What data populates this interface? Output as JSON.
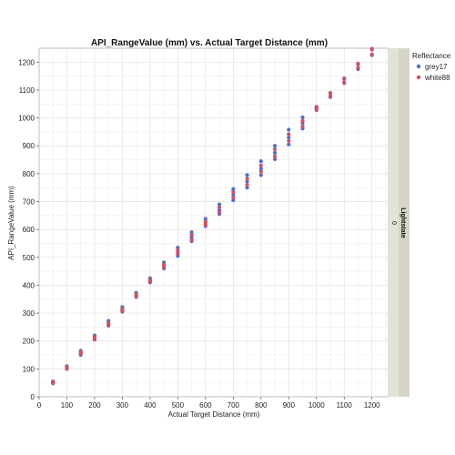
{
  "chart_data": {
    "type": "scatter",
    "title": "API_RangeValue (mm) vs. Actual Target Distance (mm)",
    "xlabel": "Actual Target Distance (mm)",
    "ylabel": "API_RangeValue (mm)",
    "xlim": [
      0,
      1260
    ],
    "ylim": [
      0,
      1250
    ],
    "xticks": [
      "0",
      "100",
      "200",
      "300",
      "400",
      "500",
      "600",
      "700",
      "800",
      "900",
      "1000",
      "1100",
      "1200"
    ],
    "yticks": [
      "0",
      "100",
      "200",
      "300",
      "400",
      "500",
      "600",
      "700",
      "800",
      "900",
      "1000",
      "1100",
      "1200"
    ],
    "grid": true,
    "legend": {
      "title": "Reflectance",
      "placement": "right"
    },
    "strip": {
      "title": "Lightstate",
      "value": "0"
    },
    "series": [
      {
        "name": "grey17",
        "color": "#4a6fd4",
        "points": [
          [
            50,
            48
          ],
          [
            50,
            52
          ],
          [
            50,
            55
          ],
          [
            100,
            100
          ],
          [
            100,
            105
          ],
          [
            100,
            110
          ],
          [
            150,
            150
          ],
          [
            150,
            158
          ],
          [
            150,
            165
          ],
          [
            200,
            205
          ],
          [
            200,
            212
          ],
          [
            200,
            220
          ],
          [
            250,
            255
          ],
          [
            250,
            263
          ],
          [
            250,
            272
          ],
          [
            300,
            305
          ],
          [
            300,
            313
          ],
          [
            300,
            322
          ],
          [
            350,
            358
          ],
          [
            350,
            365
          ],
          [
            350,
            373
          ],
          [
            400,
            410
          ],
          [
            400,
            418
          ],
          [
            400,
            425
          ],
          [
            450,
            460
          ],
          [
            450,
            470
          ],
          [
            450,
            482
          ],
          [
            500,
            505
          ],
          [
            500,
            518
          ],
          [
            500,
            535
          ],
          [
            550,
            558
          ],
          [
            550,
            572
          ],
          [
            550,
            590
          ],
          [
            600,
            612
          ],
          [
            600,
            625
          ],
          [
            600,
            638
          ],
          [
            650,
            655
          ],
          [
            650,
            670
          ],
          [
            650,
            690
          ],
          [
            700,
            705
          ],
          [
            700,
            725
          ],
          [
            700,
            745
          ],
          [
            750,
            750
          ],
          [
            750,
            772
          ],
          [
            750,
            795
          ],
          [
            800,
            795
          ],
          [
            800,
            818
          ],
          [
            800,
            845
          ],
          [
            850,
            852
          ],
          [
            850,
            875
          ],
          [
            850,
            900
          ],
          [
            900,
            905
          ],
          [
            900,
            930
          ],
          [
            900,
            958
          ],
          [
            950,
            962
          ],
          [
            950,
            982
          ],
          [
            950,
            1002
          ],
          [
            1000,
            1028
          ],
          [
            1000,
            1036
          ],
          [
            1050,
            1075
          ],
          [
            1050,
            1088
          ],
          [
            1100,
            1125
          ],
          [
            1100,
            1140
          ],
          [
            1150,
            1175
          ],
          [
            1150,
            1192
          ],
          [
            1200,
            1225
          ],
          [
            1200,
            1245
          ]
        ]
      },
      {
        "name": "white88",
        "color": "#d94f5c",
        "points": [
          [
            50,
            50
          ],
          [
            50,
            53
          ],
          [
            100,
            103
          ],
          [
            100,
            107
          ],
          [
            150,
            155
          ],
          [
            150,
            160
          ],
          [
            200,
            208
          ],
          [
            200,
            215
          ],
          [
            250,
            258
          ],
          [
            250,
            266
          ],
          [
            300,
            308
          ],
          [
            300,
            316
          ],
          [
            350,
            362
          ],
          [
            350,
            368
          ],
          [
            400,
            414
          ],
          [
            400,
            420
          ],
          [
            450,
            465
          ],
          [
            450,
            474
          ],
          [
            500,
            512
          ],
          [
            500,
            525
          ],
          [
            550,
            563
          ],
          [
            550,
            580
          ],
          [
            600,
            618
          ],
          [
            600,
            630
          ],
          [
            650,
            662
          ],
          [
            650,
            680
          ],
          [
            700,
            715
          ],
          [
            700,
            735
          ],
          [
            750,
            760
          ],
          [
            750,
            782
          ],
          [
            800,
            808
          ],
          [
            800,
            830
          ],
          [
            850,
            862
          ],
          [
            850,
            888
          ],
          [
            900,
            918
          ],
          [
            900,
            942
          ],
          [
            950,
            970
          ],
          [
            950,
            990
          ],
          [
            1000,
            1030
          ],
          [
            1000,
            1040
          ],
          [
            1050,
            1078
          ],
          [
            1050,
            1090
          ],
          [
            1100,
            1128
          ],
          [
            1100,
            1142
          ],
          [
            1150,
            1180
          ],
          [
            1150,
            1195
          ],
          [
            1200,
            1228
          ],
          [
            1200,
            1248
          ]
        ]
      }
    ]
  }
}
